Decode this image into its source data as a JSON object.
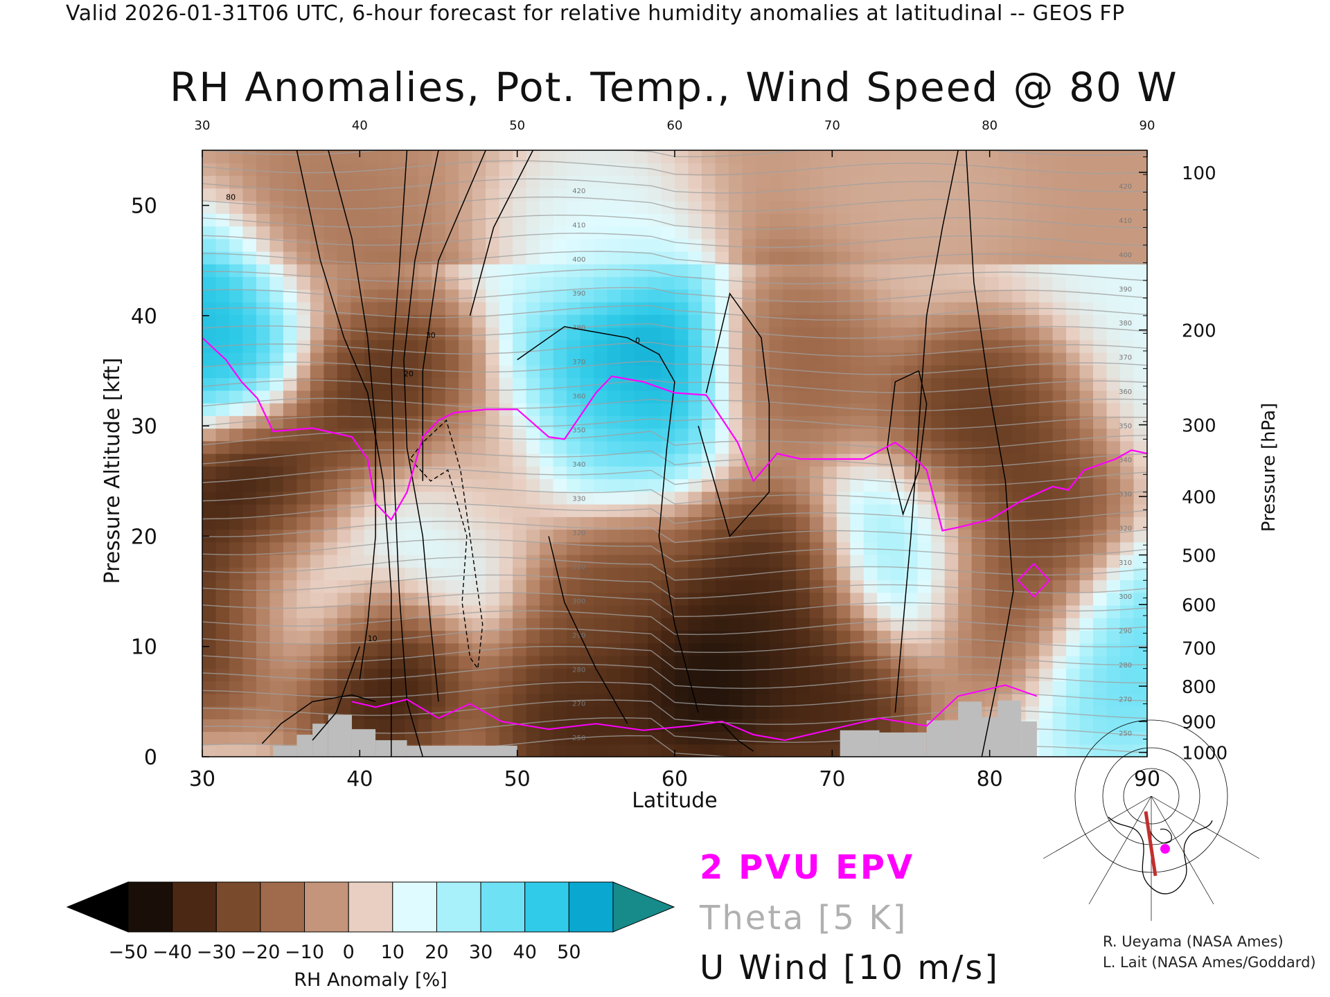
{
  "header": {
    "valid_line": "Valid 2026-01-31T06 UTC, 6-hour forecast for relative humidity anomalies at latitudinal -- GEOS FP",
    "title": "RH Anomalies, Pot. Temp., Wind Speed @ 80 W"
  },
  "chart_data": {
    "type": "heatmap",
    "title": "RH Anomalies, Pot. Temp., Wind Speed @ 80 W",
    "xlabel": "Latitude",
    "ylabel": "Pressure Altitude [kft]",
    "y2label": "Pressure [hPa]",
    "xlim": [
      30,
      90
    ],
    "ylim": [
      0,
      55
    ],
    "x_ticks": [
      30,
      40,
      50,
      60,
      70,
      80,
      90
    ],
    "y_ticks": [
      0,
      10,
      20,
      30,
      40,
      50
    ],
    "pressure_ticks": [
      {
        "label": "100",
        "kft": 53.0
      },
      {
        "label": "200",
        "kft": 38.7
      },
      {
        "label": "300",
        "kft": 30.1
      },
      {
        "label": "400",
        "kft": 23.6
      },
      {
        "label": "500",
        "kft": 18.3
      },
      {
        "label": "600",
        "kft": 13.8
      },
      {
        "label": "700",
        "kft": 9.9
      },
      {
        "label": "800",
        "kft": 6.4
      },
      {
        "label": "900",
        "kft": 3.2
      },
      {
        "label": "1000",
        "kft": 0.4
      }
    ],
    "colorbar": {
      "label": "RH Anomaly [%]",
      "tick_labels": [
        "-50",
        "-40",
        "-30",
        "-20",
        "-10",
        "0",
        "10",
        "20",
        "30",
        "40",
        "50"
      ],
      "colors": [
        "#1a0f08",
        "#4a2814",
        "#7a4a2c",
        "#a06b4c",
        "#c4957a",
        "#e8cfc2",
        "#e0fbff",
        "#a8f0fa",
        "#6fe1f5",
        "#30cbe8",
        "#0aa8d0"
      ],
      "under_color": "#000000",
      "over_color": "#178a8a"
    },
    "rh_anomaly_features": [
      {
        "lat": 33.5,
        "kft": 22,
        "value": -48
      },
      {
        "lat": 41.5,
        "kft": 33,
        "value": -38
      },
      {
        "lat": 41.0,
        "kft": 8,
        "value": -45
      },
      {
        "lat": 31.0,
        "kft": 13,
        "value": -42
      },
      {
        "lat": 31.0,
        "kft": 39,
        "value": 42
      },
      {
        "lat": 36.0,
        "kft": 15,
        "value": 22
      },
      {
        "lat": 38.0,
        "kft": 48,
        "value": -15
      },
      {
        "lat": 45.0,
        "kft": 20,
        "value": 15
      },
      {
        "lat": 48.0,
        "kft": 25,
        "value": -10
      },
      {
        "lat": 55.0,
        "kft": 30,
        "value": 28
      },
      {
        "lat": 57.5,
        "kft": 36,
        "value": 50
      },
      {
        "lat": 56.0,
        "kft": 15,
        "value": -30
      },
      {
        "lat": 62.0,
        "kft": 7,
        "value": -50
      },
      {
        "lat": 54.0,
        "kft": 3,
        "value": -40
      },
      {
        "lat": 66.0,
        "kft": 15,
        "value": -40
      },
      {
        "lat": 70.0,
        "kft": 5,
        "value": -40
      },
      {
        "lat": 68.0,
        "kft": 36,
        "value": -22
      },
      {
        "lat": 79.0,
        "kft": 30,
        "value": -35
      },
      {
        "lat": 81.0,
        "kft": 14,
        "value": -25
      },
      {
        "lat": 75.0,
        "kft": 18,
        "value": 25
      },
      {
        "lat": 82.5,
        "kft": 20,
        "value": -35
      },
      {
        "lat": 88.0,
        "kft": 10,
        "value": 30
      },
      {
        "lat": 75.0,
        "kft": 50,
        "value": -5
      },
      {
        "lat": 55.0,
        "kft": 48,
        "value": 10
      }
    ],
    "theta_contours": {
      "interval_K": 5,
      "labels": [
        "250",
        "270",
        "280",
        "290",
        "300",
        "310",
        "320",
        "330",
        "340",
        "350",
        "360",
        "370",
        "380",
        "390",
        "400",
        "410",
        "420"
      ]
    },
    "u_wind_contours": {
      "interval_ms": 10,
      "labels": [
        "0",
        "10",
        "20",
        "30",
        "80"
      ]
    },
    "pv2_line": [
      [
        30,
        38
      ],
      [
        31.5,
        36
      ],
      [
        32.5,
        34
      ],
      [
        33.5,
        32.5
      ],
      [
        34.5,
        29.5
      ],
      [
        37,
        29.8
      ],
      [
        39.5,
        29
      ],
      [
        40.5,
        27
      ],
      [
        41,
        23
      ],
      [
        42,
        21.5
      ],
      [
        43,
        24
      ],
      [
        44,
        29
      ],
      [
        45,
        30.5
      ],
      [
        46,
        31.2
      ],
      [
        48,
        31.5
      ],
      [
        50,
        31.5
      ],
      [
        52,
        29
      ],
      [
        53,
        28.8
      ],
      [
        55,
        33
      ],
      [
        56,
        34.5
      ],
      [
        58,
        34
      ],
      [
        60,
        33
      ],
      [
        62,
        32.8
      ],
      [
        64,
        28.5
      ],
      [
        65,
        25
      ],
      [
        66.5,
        27.5
      ],
      [
        68,
        27
      ],
      [
        70,
        27
      ],
      [
        72,
        27
      ],
      [
        74,
        28.5
      ],
      [
        75,
        27.5
      ],
      [
        76,
        26
      ],
      [
        77,
        20.5
      ],
      [
        78,
        20.8
      ],
      [
        80,
        21.5
      ],
      [
        82,
        23.2
      ],
      [
        84,
        24.5
      ],
      [
        85,
        24.2
      ],
      [
        86,
        26
      ],
      [
        88,
        27
      ],
      [
        89,
        27.8
      ],
      [
        90,
        27.5
      ]
    ],
    "terrain_blocks": [
      [
        34.5,
        36,
        1.0
      ],
      [
        36,
        37,
        2.0
      ],
      [
        37,
        38,
        3.0
      ],
      [
        38,
        39.5,
        3.8
      ],
      [
        39.5,
        41,
        2.5
      ],
      [
        41,
        43,
        1.5
      ],
      [
        43,
        50,
        1.0
      ],
      [
        70.5,
        73,
        2.4
      ],
      [
        73,
        76,
        2.2
      ],
      [
        76,
        78,
        3.3
      ],
      [
        78,
        79.5,
        5.0
      ],
      [
        79.5,
        80.5,
        3.6
      ],
      [
        80.5,
        82,
        5.1
      ],
      [
        82,
        83,
        3.2
      ]
    ],
    "legend": {
      "epv": "2 PVU EPV",
      "theta": "Theta [5 K]",
      "wind": "U Wind [10 m/s]"
    },
    "credits": [
      "R. Ueyama (NASA Ames)",
      "L. Lait (NASA Ames/Goddard)"
    ],
    "colors": {
      "epv": "#ff00ff",
      "theta": "#a0a0a0",
      "wind": "#000000",
      "terrain": "#bdbdbd",
      "map_track": "#c0302e",
      "map_marker": "#ff00ff"
    },
    "inset_map": "polar stereographic map with the 80 W cross-section track and a magenta marker"
  }
}
